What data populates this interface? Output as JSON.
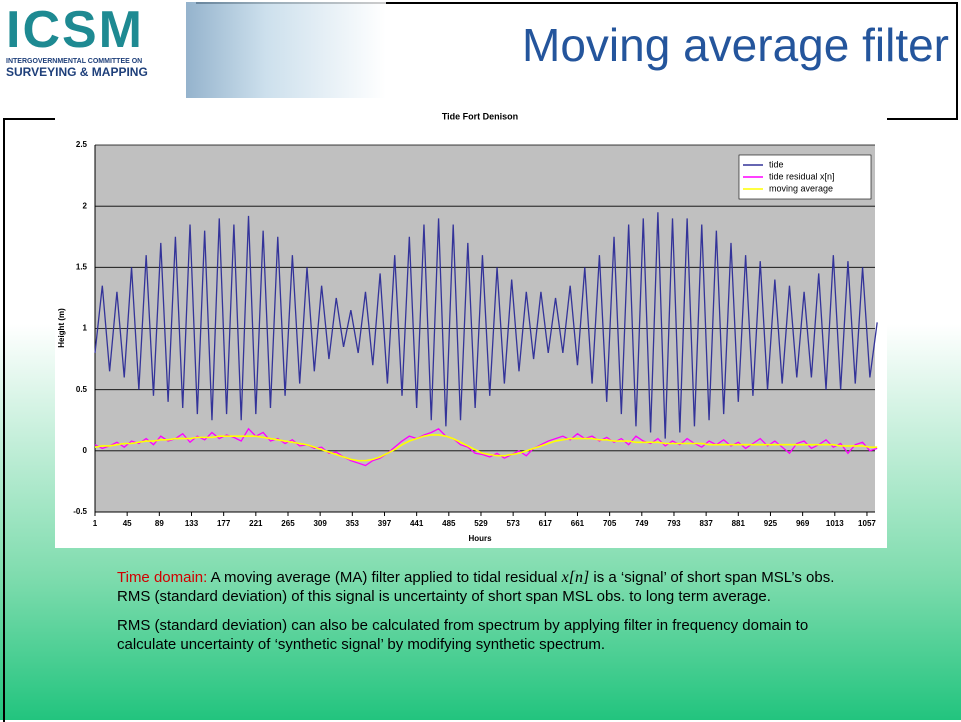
{
  "header": {
    "logo_acronym": "ICSM",
    "logo_line1": "INTERGOVERNMENTAL COMMITTEE ON",
    "logo_line2": "SURVEYING & MAPPING",
    "title": "Moving average filter"
  },
  "chart_data": {
    "type": "line",
    "title": "Tide Fort Denison",
    "x_label": "Hours",
    "y_label": "Height (m)",
    "x": [
      1,
      11,
      21,
      31,
      41,
      51,
      61,
      71,
      81,
      91,
      101,
      111,
      121,
      131,
      141,
      151,
      161,
      171,
      181,
      191,
      201,
      211,
      221,
      231,
      241,
      251,
      261,
      271,
      281,
      291,
      301,
      311,
      321,
      331,
      341,
      351,
      361,
      371,
      381,
      391,
      401,
      411,
      421,
      431,
      441,
      451,
      461,
      471,
      481,
      491,
      501,
      511,
      521,
      531,
      541,
      551,
      561,
      571,
      581,
      591,
      601,
      611,
      621,
      631,
      641,
      651,
      661,
      671,
      681,
      691,
      701,
      711,
      721,
      731,
      741,
      751,
      761,
      771,
      781,
      791,
      801,
      811,
      821,
      831,
      841,
      851,
      861,
      871,
      881,
      891,
      901,
      911,
      921,
      931,
      941,
      951,
      961,
      971,
      981,
      991,
      1001,
      1011,
      1021,
      1031,
      1041,
      1051,
      1061,
      1071
    ],
    "series": [
      {
        "name": "tide",
        "color": "#333399",
        "width": 1.3,
        "values": [
          0.8,
          1.35,
          0.65,
          1.3,
          0.6,
          1.5,
          0.5,
          1.6,
          0.45,
          1.7,
          0.4,
          1.75,
          0.35,
          1.85,
          0.3,
          1.8,
          0.25,
          1.9,
          0.3,
          1.85,
          0.25,
          1.92,
          0.3,
          1.8,
          0.35,
          1.75,
          0.45,
          1.6,
          0.55,
          1.5,
          0.65,
          1.35,
          0.75,
          1.25,
          0.85,
          1.15,
          0.8,
          1.3,
          0.7,
          1.45,
          0.55,
          1.6,
          0.45,
          1.75,
          0.35,
          1.85,
          0.25,
          1.9,
          0.2,
          1.85,
          0.25,
          1.7,
          0.35,
          1.6,
          0.45,
          1.5,
          0.55,
          1.4,
          0.65,
          1.3,
          0.75,
          1.3,
          0.8,
          1.25,
          0.8,
          1.35,
          0.7,
          1.5,
          0.55,
          1.6,
          0.4,
          1.75,
          0.3,
          1.85,
          0.2,
          1.9,
          0.15,
          1.95,
          0.1,
          1.9,
          0.15,
          1.9,
          0.2,
          1.85,
          0.25,
          1.8,
          0.3,
          1.7,
          0.4,
          1.6,
          0.45,
          1.55,
          0.5,
          1.4,
          0.55,
          1.35,
          0.6,
          1.3,
          0.6,
          1.45,
          0.5,
          1.6,
          0.5,
          1.55,
          0.55,
          1.5,
          0.6,
          1.05
        ]
      },
      {
        "name": "tide residual x[n]",
        "color": "#ff00ff",
        "width": 1.3,
        "values": [
          0.05,
          0.02,
          0.04,
          0.07,
          0.03,
          0.08,
          0.06,
          0.1,
          0.05,
          0.12,
          0.08,
          0.1,
          0.14,
          0.07,
          0.12,
          0.09,
          0.15,
          0.1,
          0.13,
          0.11,
          0.08,
          0.18,
          0.12,
          0.15,
          0.08,
          0.1,
          0.06,
          0.09,
          0.04,
          0.05,
          0.02,
          0.03,
          -0.02,
          -0.01,
          -0.05,
          -0.08,
          -0.1,
          -0.12,
          -0.08,
          -0.06,
          -0.02,
          0.03,
          0.08,
          0.12,
          0.1,
          0.13,
          0.15,
          0.18,
          0.12,
          0.1,
          0.05,
          0.03,
          -0.02,
          -0.03,
          -0.05,
          -0.02,
          -0.06,
          -0.03,
          0.0,
          -0.04,
          0.02,
          0.05,
          0.08,
          0.1,
          0.12,
          0.09,
          0.14,
          0.1,
          0.12,
          0.08,
          0.11,
          0.07,
          0.1,
          0.05,
          0.12,
          0.08,
          0.06,
          0.1,
          0.04,
          0.08,
          0.05,
          0.1,
          0.06,
          0.03,
          0.08,
          0.05,
          0.09,
          0.04,
          0.07,
          0.02,
          0.06,
          0.1,
          0.04,
          0.08,
          0.03,
          -0.02,
          0.06,
          0.08,
          0.02,
          0.05,
          0.09,
          0.03,
          0.06,
          -0.02,
          0.05,
          0.07,
          0.0,
          0.02
        ]
      },
      {
        "name": "moving average",
        "color": "#ffff00",
        "width": 1.6,
        "values": [
          0.03,
          0.04,
          0.04,
          0.05,
          0.06,
          0.06,
          0.07,
          0.08,
          0.08,
          0.09,
          0.09,
          0.1,
          0.1,
          0.1,
          0.11,
          0.11,
          0.11,
          0.12,
          0.12,
          0.12,
          0.12,
          0.12,
          0.12,
          0.11,
          0.1,
          0.09,
          0.08,
          0.07,
          0.06,
          0.05,
          0.03,
          0.01,
          -0.01,
          -0.03,
          -0.05,
          -0.07,
          -0.08,
          -0.08,
          -0.07,
          -0.05,
          -0.02,
          0.01,
          0.05,
          0.08,
          0.1,
          0.12,
          0.13,
          0.13,
          0.12,
          0.1,
          0.07,
          0.04,
          0.01,
          -0.02,
          -0.03,
          -0.04,
          -0.04,
          -0.03,
          -0.02,
          0.0,
          0.02,
          0.04,
          0.06,
          0.08,
          0.09,
          0.1,
          0.1,
          0.1,
          0.1,
          0.09,
          0.09,
          0.08,
          0.08,
          0.08,
          0.07,
          0.07,
          0.07,
          0.07,
          0.06,
          0.06,
          0.06,
          0.06,
          0.06,
          0.06,
          0.05,
          0.05,
          0.05,
          0.05,
          0.05,
          0.05,
          0.05,
          0.05,
          0.05,
          0.05,
          0.05,
          0.05,
          0.05,
          0.05,
          0.05,
          0.05,
          0.05,
          0.05,
          0.04,
          0.04,
          0.04,
          0.04,
          0.03,
          0.03
        ]
      }
    ],
    "xlim": [
      1,
      1068
    ],
    "xticks": [
      1,
      45,
      89,
      133,
      177,
      221,
      265,
      309,
      353,
      397,
      441,
      485,
      529,
      573,
      617,
      661,
      705,
      749,
      793,
      837,
      881,
      925,
      969,
      1013,
      1057
    ],
    "ylim": [
      -0.5,
      2.5
    ],
    "yticks": [
      -0.5,
      0,
      0.5,
      1,
      1.5,
      2,
      2.5
    ],
    "grid": true,
    "legend": "upper right"
  },
  "text": {
    "p1_label": "Time domain:",
    "p1_a": "A moving average (MA) filter applied to tidal residual",
    "p1_var": "x[n]",
    "p1_b": "is a ‘signal’ of short span MSL’s obs. RMS (standard deviation) of this signal is uncertainty of short span MSL obs. to long term average.",
    "p2": "RMS (standard deviation) can also be calculated from spectrum by applying filter in frequency domain to calculate uncertainty of ‘synthetic signal’ by modifying synthetic spectrum."
  }
}
